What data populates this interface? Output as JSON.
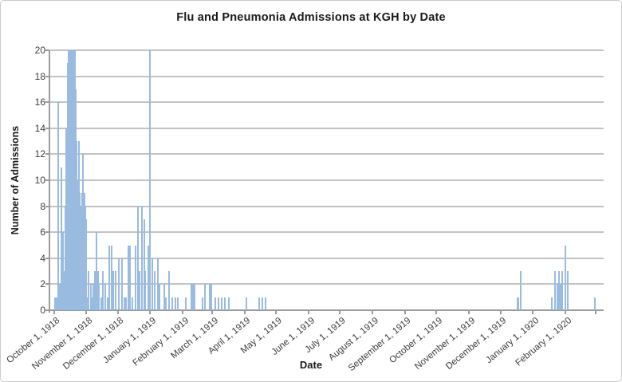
{
  "chart": {
    "title": "Flu and Pneumonia Admissions at KGH by Date",
    "x_axis_title": "Date",
    "y_axis_title": "Number of Admissions",
    "y_ticks": [
      0,
      2,
      4,
      6,
      8,
      10,
      12,
      14,
      16,
      18,
      20
    ],
    "x_ticks": [
      {
        "date": "1918-10-01",
        "label": "October 1, 1918"
      },
      {
        "date": "1918-11-01",
        "label": "November 1, 1918"
      },
      {
        "date": "1918-12-01",
        "label": "December 1, 1918"
      },
      {
        "date": "1919-01-01",
        "label": "January 1, 1919"
      },
      {
        "date": "1919-02-01",
        "label": "February 1, 1919"
      },
      {
        "date": "1919-03-01",
        "label": "March 1, 1919"
      },
      {
        "date": "1919-04-01",
        "label": "April 1, 1919"
      },
      {
        "date": "1919-05-01",
        "label": "May 1, 1919"
      },
      {
        "date": "1919-06-01",
        "label": "June 1, 1919"
      },
      {
        "date": "1919-07-01",
        "label": "July 1, 1919"
      },
      {
        "date": "1919-08-01",
        "label": "August 1, 1919"
      },
      {
        "date": "1919-09-01",
        "label": "September 1, 1919"
      },
      {
        "date": "1919-10-01",
        "label": "October 1, 1919"
      },
      {
        "date": "1919-11-01",
        "label": "November 1, 1919"
      },
      {
        "date": "1919-12-01",
        "label": "December 1, 1919"
      },
      {
        "date": "1920-01-01",
        "label": "January 1, 1920"
      },
      {
        "date": "1920-02-01",
        "label": "February 1, 1920"
      },
      {
        "date": "1920-03-01",
        "label": ""
      }
    ],
    "colors": {
      "bar_fill": "#a3c3e6",
      "bar_edge": "#8fb3da",
      "gridline": "#c3c3c3",
      "axis_line": "#9b9b9b",
      "tick_text": "#3c3c3c",
      "title_text": "#1a1a1a",
      "frame_border": "#c9c9c9"
    }
  },
  "chart_data": {
    "type": "bar",
    "title": "Flu and Pneumonia Admissions at KGH by Date",
    "xlabel": "Date",
    "ylabel": "Number of Admissions",
    "ylim": [
      0,
      20
    ],
    "y_tick_step": 2,
    "x_start_date": "1918-10-01",
    "x_end_date": "1920-03-08",
    "grid": true,
    "legend": false,
    "points": [
      [
        "1918-10-02",
        1
      ],
      [
        "1918-10-04",
        1
      ],
      [
        "1918-10-05",
        16
      ],
      [
        "1918-10-07",
        2
      ],
      [
        "1918-10-08",
        11
      ],
      [
        "1918-10-10",
        6
      ],
      [
        "1918-10-11",
        3
      ],
      [
        "1918-10-12",
        8
      ],
      [
        "1918-10-13",
        14
      ],
      [
        "1918-10-14",
        19
      ],
      [
        "1918-10-15",
        20
      ],
      [
        "1918-10-16",
        20
      ],
      [
        "1918-10-17",
        20
      ],
      [
        "1918-10-18",
        20
      ],
      [
        "1918-10-19",
        19
      ],
      [
        "1918-10-20",
        20
      ],
      [
        "1918-10-21",
        20
      ],
      [
        "1918-10-22",
        17
      ],
      [
        "1918-10-23",
        13
      ],
      [
        "1918-10-24",
        10
      ],
      [
        "1918-10-25",
        13
      ],
      [
        "1918-10-26",
        9
      ],
      [
        "1918-10-27",
        8
      ],
      [
        "1918-10-28",
        9
      ],
      [
        "1918-10-29",
        12
      ],
      [
        "1918-10-30",
        9
      ],
      [
        "1918-10-31",
        8
      ],
      [
        "1918-11-01",
        7
      ],
      [
        "1918-11-02",
        1
      ],
      [
        "1918-11-03",
        3
      ],
      [
        "1918-11-05",
        2
      ],
      [
        "1918-11-06",
        1
      ],
      [
        "1918-11-08",
        2
      ],
      [
        "1918-11-09",
        3
      ],
      [
        "1918-11-11",
        6
      ],
      [
        "1918-11-12",
        3
      ],
      [
        "1918-11-13",
        2
      ],
      [
        "1918-11-15",
        1
      ],
      [
        "1918-11-17",
        3
      ],
      [
        "1918-11-19",
        2
      ],
      [
        "1918-11-21",
        1
      ],
      [
        "1918-11-23",
        5
      ],
      [
        "1918-11-25",
        5
      ],
      [
        "1918-11-27",
        3
      ],
      [
        "1918-11-29",
        3
      ],
      [
        "1918-12-02",
        4
      ],
      [
        "1918-12-05",
        4
      ],
      [
        "1918-12-07",
        1
      ],
      [
        "1918-12-09",
        1
      ],
      [
        "1918-12-11",
        5
      ],
      [
        "1918-12-13",
        5
      ],
      [
        "1918-12-15",
        1
      ],
      [
        "1918-12-18",
        5
      ],
      [
        "1918-12-20",
        8
      ],
      [
        "1918-12-22",
        3
      ],
      [
        "1918-12-24",
        8
      ],
      [
        "1918-12-26",
        7
      ],
      [
        "1918-12-27",
        3
      ],
      [
        "1918-12-30",
        5
      ],
      [
        "1919-01-01",
        20
      ],
      [
        "1919-01-03",
        4
      ],
      [
        "1919-01-05",
        3
      ],
      [
        "1919-01-08",
        4
      ],
      [
        "1919-01-10",
        2
      ],
      [
        "1919-01-14",
        2
      ],
      [
        "1919-01-16",
        1
      ],
      [
        "1919-01-19",
        3
      ],
      [
        "1919-01-22",
        1
      ],
      [
        "1919-01-25",
        1
      ],
      [
        "1919-01-27",
        1
      ],
      [
        "1919-02-04",
        1
      ],
      [
        "1919-02-09",
        2
      ],
      [
        "1919-02-10",
        2
      ],
      [
        "1919-02-11",
        2
      ],
      [
        "1919-02-12",
        2
      ],
      [
        "1919-02-20",
        1
      ],
      [
        "1919-02-22",
        2
      ],
      [
        "1919-02-27",
        2
      ],
      [
        "1919-02-28",
        2
      ],
      [
        "1919-03-04",
        1
      ],
      [
        "1919-03-07",
        1
      ],
      [
        "1919-03-10",
        1
      ],
      [
        "1919-03-13",
        1
      ],
      [
        "1919-03-17",
        1
      ],
      [
        "1919-04-03",
        1
      ],
      [
        "1919-04-15",
        1
      ],
      [
        "1919-04-18",
        1
      ],
      [
        "1919-04-21",
        1
      ],
      [
        "1919-12-17",
        1
      ],
      [
        "1919-12-18",
        1
      ],
      [
        "1919-12-20",
        3
      ],
      [
        "1920-01-19",
        1
      ],
      [
        "1920-01-22",
        3
      ],
      [
        "1920-01-24",
        2
      ],
      [
        "1920-01-26",
        3
      ],
      [
        "1920-01-27",
        2
      ],
      [
        "1920-01-29",
        3
      ],
      [
        "1920-02-01",
        5
      ],
      [
        "1920-02-03",
        3
      ],
      [
        "1920-02-29",
        1
      ]
    ]
  }
}
